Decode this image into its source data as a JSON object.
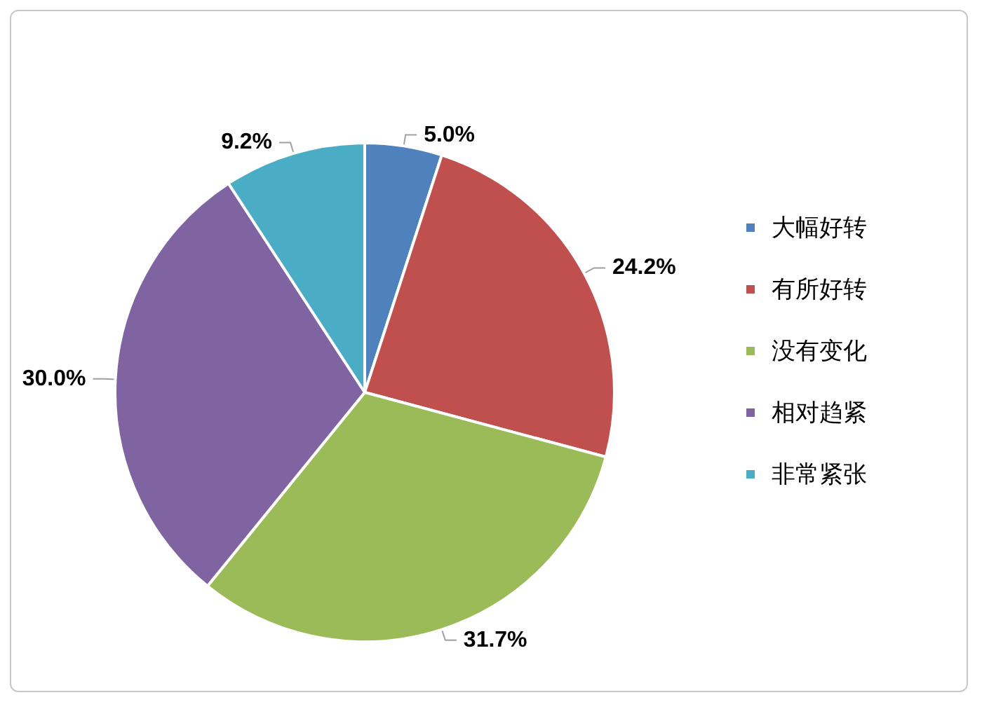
{
  "chart_data": {
    "type": "pie",
    "categories": [
      "大幅好转",
      "有所好转",
      "没有变化",
      "相对趋紧",
      "非常紧张"
    ],
    "values": [
      5.0,
      24.2,
      31.7,
      30.0,
      9.2
    ],
    "colors": [
      "#4f81bd",
      "#c0504d",
      "#9bbb59",
      "#8064a2",
      "#4bacc6"
    ],
    "value_labels": [
      "5.0%",
      "24.2%",
      "31.7%",
      "30.0%",
      "9.2%"
    ],
    "legend": "right"
  }
}
